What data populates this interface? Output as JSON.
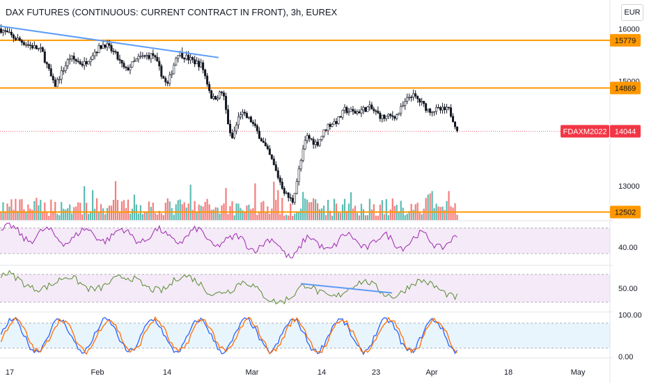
{
  "header": {
    "title": "DAX FUTURES (CONTINUOUS: CURRENT CONTRACT IN FRONT), 3h, EUREX",
    "currency": "EUR"
  },
  "colors": {
    "up": "#26a69a",
    "down": "#ef5350",
    "candle": "#131722",
    "level": "#ff9800",
    "trendline": "#5b9cf6",
    "rsi": "#9c27b0",
    "osc2": "#558b2f",
    "stoch_k": "#2962ff",
    "stoch_d": "#ff6d00",
    "last_price": "#f23645",
    "rsi_band": "#f3e5f5",
    "stoch_band": "#e3f2fd"
  },
  "chart_data": {
    "type": "candlestick",
    "x_ticks": [
      "17",
      "Feb",
      "14",
      "Mar",
      "14",
      "23",
      "Apr",
      "18",
      "May"
    ],
    "price_axis": {
      "ticks": [
        "16000",
        "15000",
        "13000"
      ],
      "ylim": [
        12350,
        16150
      ]
    },
    "price_path": [
      [
        0,
        16000
      ],
      [
        20,
        15830
      ],
      [
        40,
        15700
      ],
      [
        60,
        15580
      ],
      [
        78,
        14900
      ],
      [
        100,
        15450
      ],
      [
        120,
        15320
      ],
      [
        135,
        15550
      ],
      [
        150,
        15720
      ],
      [
        165,
        15520
      ],
      [
        180,
        15200
      ],
      [
        200,
        15450
      ],
      [
        220,
        15500
      ],
      [
        240,
        14900
      ],
      [
        255,
        15550
      ],
      [
        275,
        15400
      ],
      [
        290,
        15300
      ],
      [
        305,
        14650
      ],
      [
        320,
        14800
      ],
      [
        332,
        13850
      ],
      [
        345,
        14400
      ],
      [
        360,
        14250
      ],
      [
        375,
        13900
      ],
      [
        390,
        13500
      ],
      [
        400,
        13150
      ],
      [
        410,
        12850
      ],
      [
        420,
        12700
      ],
      [
        430,
        13350
      ],
      [
        440,
        13950
      ],
      [
        455,
        13800
      ],
      [
        470,
        14150
      ],
      [
        485,
        14250
      ],
      [
        495,
        14450
      ],
      [
        510,
        14400
      ],
      [
        530,
        14500
      ],
      [
        550,
        14300
      ],
      [
        570,
        14350
      ],
      [
        590,
        14750
      ],
      [
        600,
        14650
      ],
      [
        615,
        14450
      ],
      [
        630,
        14450
      ],
      [
        645,
        14450
      ],
      [
        658,
        14044
      ]
    ],
    "levels": [
      {
        "label": "15779",
        "value": 15779
      },
      {
        "label": "14869",
        "value": 14869
      },
      {
        "label": "12502",
        "value": 12502
      }
    ],
    "last_price": {
      "symbol": "FDAXM2022",
      "value": "14044"
    },
    "trendlines": [
      {
        "panel": "price",
        "from": [
          0,
          16050
        ],
        "to": [
          314,
          15450
        ]
      },
      {
        "panel": "osc2",
        "from": [
          432,
          60
        ],
        "to": [
          563,
          40
        ]
      }
    ],
    "indicators": [
      {
        "name": "rsi",
        "range": [
          15,
          80
        ],
        "band": [
          30,
          70
        ],
        "tick": "40.00",
        "tick_value": 40
      },
      {
        "name": "osc2",
        "range": [
          5,
          95
        ],
        "band": [
          20,
          80
        ],
        "tick": "50.00",
        "tick_value": 50
      },
      {
        "name": "stoch",
        "range": [
          0,
          100
        ],
        "band": [
          20,
          80
        ],
        "ticks": [
          "100.00",
          "0.00"
        ]
      }
    ]
  }
}
